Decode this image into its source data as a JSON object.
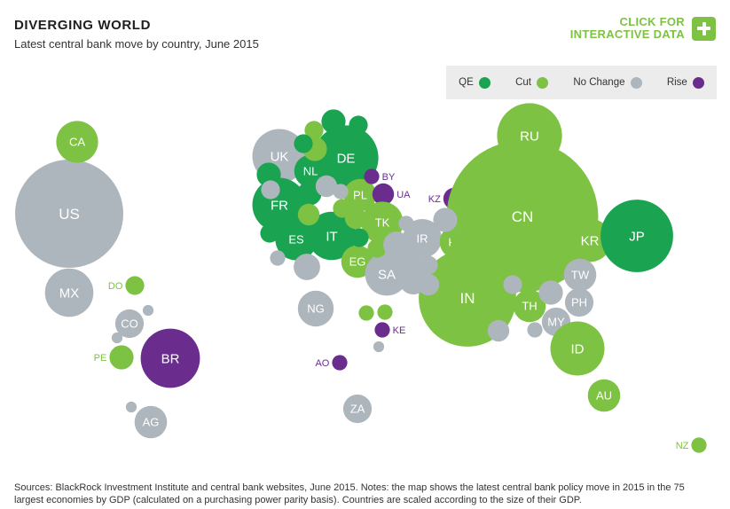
{
  "header": {
    "title": "DIVERGING WORLD",
    "subtitle": "Latest central bank move by country, June 2015"
  },
  "cta": {
    "line1": "CLICK FOR",
    "line2": "INTERACTIVE DATA",
    "icon": "plus-icon"
  },
  "colors": {
    "QE": "#1aa452",
    "Cut": "#7dc242",
    "No Change": "#aeb6bd",
    "Rise": "#6a2d8e"
  },
  "legend": [
    {
      "label": "QE",
      "category": "QE"
    },
    {
      "label": "Cut",
      "category": "Cut"
    },
    {
      "label": "No Change",
      "category": "No Change"
    },
    {
      "label": "Rise",
      "category": "Rise"
    }
  ],
  "footer": "Sources: BlackRock Investment Institute and central bank websites, June 2015. Notes: the map shows the latest central bank policy move in 2015 in the 75 largest economies by GDP (calculated on a purchasing power parity basis). Countries are scaled according to the size of their GDP.",
  "chart_data": {
    "type": "scatter",
    "categories": [
      "QE",
      "Cut",
      "No Change",
      "Rise"
    ],
    "countries": [
      {
        "label": "US",
        "category": "No Change",
        "size": 100
      },
      {
        "label": "CA",
        "category": "Cut",
        "size": 15
      },
      {
        "label": "MX",
        "category": "No Change",
        "size": 20
      },
      {
        "label": "DO",
        "category": "Cut",
        "size": 3
      },
      {
        "label": "CO",
        "category": "No Change",
        "size": 7
      },
      {
        "label": "PE",
        "category": "Cut",
        "size": 5
      },
      {
        "label": "BR",
        "category": "Rise",
        "size": 30
      },
      {
        "label": "AG",
        "category": "No Change",
        "size": 9
      },
      {
        "label": "UK",
        "category": "No Change",
        "size": 25
      },
      {
        "label": "DE",
        "category": "QE",
        "size": 36
      },
      {
        "label": "NL",
        "category": "QE",
        "size": 9
      },
      {
        "label": "FR",
        "category": "QE",
        "size": 25
      },
      {
        "label": "ES",
        "category": "QE",
        "size": 15
      },
      {
        "label": "IT",
        "category": "QE",
        "size": 20
      },
      {
        "label": "PL",
        "category": "Cut",
        "size": 9
      },
      {
        "label": "BY",
        "category": "Rise",
        "size": 2
      },
      {
        "label": "UA",
        "category": "Rise",
        "size": 4
      },
      {
        "label": "TK",
        "category": "Cut",
        "size": 15
      },
      {
        "label": "EG",
        "category": "Cut",
        "size": 9
      },
      {
        "label": "SA",
        "category": "No Change",
        "size": 16
      },
      {
        "label": "IR",
        "category": "No Change",
        "size": 13
      },
      {
        "label": "KZ",
        "category": "Rise",
        "size": 4
      },
      {
        "label": "PK",
        "category": "Cut",
        "size": 9
      },
      {
        "label": "RU",
        "category": "Cut",
        "size": 36
      },
      {
        "label": "CN",
        "category": "Cut",
        "size": 196
      },
      {
        "label": "IN",
        "category": "Cut",
        "size": 81
      },
      {
        "label": "KR",
        "category": "Cut",
        "size": 16
      },
      {
        "label": "JP",
        "category": "QE",
        "size": 45
      },
      {
        "label": "TW",
        "category": "No Change",
        "size": 9
      },
      {
        "label": "PH",
        "category": "No Change",
        "size": 7
      },
      {
        "label": "TH",
        "category": "Cut",
        "size": 9
      },
      {
        "label": "MY",
        "category": "No Change",
        "size": 7
      },
      {
        "label": "ID",
        "category": "Cut",
        "size": 25
      },
      {
        "label": "AU",
        "category": "Cut",
        "size": 9
      },
      {
        "label": "NZ",
        "category": "Cut",
        "size": 2
      },
      {
        "label": "NG",
        "category": "No Change",
        "size": 11
      },
      {
        "label": "KE",
        "category": "Rise",
        "size": 2
      },
      {
        "label": "AO",
        "category": "Rise",
        "size": 2
      },
      {
        "label": "ZA",
        "category": "No Change",
        "size": 7
      },
      {
        "label": "",
        "category": "QE",
        "size": 5
      },
      {
        "label": "",
        "category": "Cut",
        "size": 3
      },
      {
        "label": "",
        "category": "QE",
        "size": 5
      },
      {
        "label": "",
        "category": "Cut",
        "size": 4
      },
      {
        "label": "",
        "category": "QE",
        "size": 5
      },
      {
        "label": "",
        "category": "No Change",
        "size": 4
      },
      {
        "label": "",
        "category": "No Change",
        "size": 2
      },
      {
        "label": "",
        "category": "QE",
        "size": 3
      },
      {
        "label": "",
        "category": "Cut",
        "size": 5
      },
      {
        "label": "",
        "category": "Cut",
        "size": 3
      },
      {
        "label": "",
        "category": "QE",
        "size": 3
      },
      {
        "label": "",
        "category": "Cut",
        "size": 4
      },
      {
        "label": "",
        "category": "QE",
        "size": 3
      },
      {
        "label": "",
        "category": "QE",
        "size": 3
      },
      {
        "label": "",
        "category": "No Change",
        "size": 3
      },
      {
        "label": "",
        "category": "No Change",
        "size": 6
      },
      {
        "label": "",
        "category": "No Change",
        "size": 2
      },
      {
        "label": "",
        "category": "Cut",
        "size": 3
      },
      {
        "label": "",
        "category": "No Change",
        "size": 6
      },
      {
        "label": "",
        "category": "No Change",
        "size": 6
      },
      {
        "label": "",
        "category": "No Change",
        "size": 3
      },
      {
        "label": "",
        "category": "No Change",
        "size": 2
      },
      {
        "label": "",
        "category": "No Change",
        "size": 7
      },
      {
        "label": "",
        "category": "No Change",
        "size": 4
      },
      {
        "label": "",
        "category": "No Change",
        "size": 5
      },
      {
        "label": "",
        "category": "No Change",
        "size": 3
      },
      {
        "label": "",
        "category": "Cut",
        "size": 3
      },
      {
        "label": "",
        "category": "No Change",
        "size": 5
      },
      {
        "label": "",
        "category": "No Change",
        "size": 2
      },
      {
        "label": "",
        "category": "No Change",
        "size": 4
      },
      {
        "label": "",
        "category": "No Change",
        "size": 1
      },
      {
        "label": "",
        "category": "No Change",
        "size": 1
      },
      {
        "label": "",
        "category": "No Change",
        "size": 1
      },
      {
        "label": "",
        "category": "Cut",
        "size": 2
      },
      {
        "label": "",
        "category": "Cut",
        "size": 2
      },
      {
        "label": "",
        "category": "No Change",
        "size": 1
      }
    ]
  }
}
